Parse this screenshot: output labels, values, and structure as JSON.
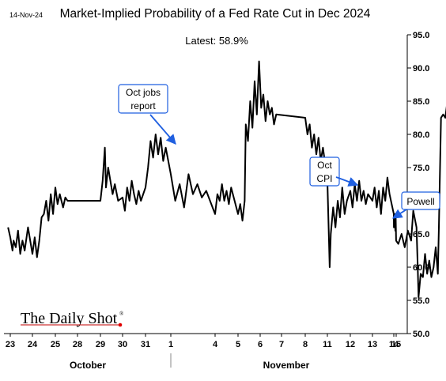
{
  "date_stamp": "14-Nov-24",
  "branding": "The Daily Shot",
  "branding_mark": "®",
  "chart_data": {
    "type": "line",
    "title": "Market-Implied Probability of a Fed Rate Cut in Dec 2024",
    "subtitle": "Latest:  58.9%",
    "latest_value": 58.9,
    "ylim": [
      50,
      95
    ],
    "yticks": [
      50,
      55,
      60,
      65,
      70,
      75,
      80,
      85,
      90,
      95
    ],
    "ytick_labels": [
      "50.0",
      "55.0",
      "60.0",
      "65.0",
      "70.0",
      "75.0",
      "80.0",
      "85.0",
      "90.0",
      "95.0"
    ],
    "x_dates": [
      "Oct 23",
      "Oct 24",
      "Oct 25",
      "Oct 28",
      "Oct 29",
      "Oct 30",
      "Oct 31",
      "Nov 1",
      "Nov 4",
      "Nov 5",
      "Nov 6",
      "Nov 7",
      "Nov 8",
      "Nov 11",
      "Nov 12",
      "Nov 13",
      "Nov 14",
      "Nov 15"
    ],
    "xtick_labels": [
      "23",
      "24",
      "25",
      "28",
      "29",
      "30",
      "31",
      "1",
      "4",
      "5",
      "6",
      "7",
      "8",
      "11",
      "12",
      "13",
      "14",
      "15"
    ],
    "month_labels": [
      "October",
      "November"
    ],
    "grid": false,
    "line_color": "#000000",
    "latest_marker_color": "#e00000",
    "annotation_color": "#1f5fe0",
    "annotations": [
      {
        "text": "Oct jobs report",
        "lines": [
          "Oct jobs",
          "report"
        ]
      },
      {
        "text": "Oct CPI",
        "lines": [
          "Oct",
          "CPI"
        ]
      },
      {
        "text": "Powell",
        "lines": [
          "Powell"
        ]
      }
    ],
    "series": [
      {
        "values": [
          [
            22.9,
            66.0
          ],
          [
            23.0,
            64.5
          ],
          [
            23.1,
            62.5
          ],
          [
            23.15,
            64.0
          ],
          [
            23.25,
            63.0
          ],
          [
            23.35,
            65.5
          ],
          [
            23.45,
            62.0
          ],
          [
            23.55,
            64.0
          ],
          [
            23.65,
            62.5
          ],
          [
            23.8,
            66.0
          ],
          [
            24.0,
            62.0
          ],
          [
            24.1,
            64.5
          ],
          [
            24.2,
            61.5
          ],
          [
            24.3,
            64.0
          ],
          [
            24.4,
            67.5
          ],
          [
            24.5,
            68.0
          ],
          [
            24.6,
            70.0
          ],
          [
            24.7,
            67.0
          ],
          [
            24.8,
            71.0
          ],
          [
            24.9,
            68.0
          ],
          [
            25.0,
            72.0
          ],
          [
            25.1,
            69.5
          ],
          [
            25.2,
            71.0
          ],
          [
            25.35,
            69.0
          ],
          [
            25.45,
            70.5
          ],
          [
            25.55,
            70.0
          ],
          [
            27.0,
            70.0
          ],
          [
            27.1,
            73.0
          ],
          [
            27.2,
            78.0
          ],
          [
            27.25,
            72.0
          ],
          [
            27.35,
            75.0
          ],
          [
            27.45,
            73.0
          ],
          [
            27.55,
            71.0
          ],
          [
            27.65,
            72.5
          ],
          [
            27.8,
            70.0
          ],
          [
            28.0,
            70.5
          ],
          [
            28.1,
            68.5
          ],
          [
            28.2,
            72.0
          ],
          [
            28.3,
            70.0
          ],
          [
            28.4,
            73.0
          ],
          [
            28.5,
            71.0
          ],
          [
            28.6,
            69.5
          ],
          [
            28.7,
            71.5
          ],
          [
            28.8,
            70.0
          ],
          [
            29.0,
            72.0
          ],
          [
            29.1,
            75.0
          ],
          [
            29.2,
            79.0
          ],
          [
            29.3,
            76.5
          ],
          [
            29.4,
            80.0
          ],
          [
            29.5,
            77.0
          ],
          [
            29.6,
            79.5
          ],
          [
            29.7,
            76.0
          ],
          [
            29.8,
            78.0
          ],
          [
            30.0,
            74.0
          ],
          [
            30.1,
            70.0
          ],
          [
            30.2,
            72.5
          ],
          [
            30.3,
            69.0
          ],
          [
            30.4,
            74.0
          ],
          [
            30.5,
            71.0
          ],
          [
            30.6,
            72.5
          ],
          [
            30.7,
            70.5
          ],
          [
            30.8,
            71.5
          ],
          [
            31.0,
            68.0
          ],
          [
            31.1,
            71.0
          ],
          [
            31.2,
            70.0
          ],
          [
            31.3,
            72.5
          ],
          [
            31.4,
            70.0
          ],
          [
            31.5,
            71.5
          ],
          [
            31.6,
            69.5
          ],
          [
            31.7,
            72.0
          ],
          [
            32.0,
            68.0
          ],
          [
            32.1,
            69.5
          ],
          [
            32.2,
            67.0
          ],
          [
            32.3,
            70.0
          ],
          [
            32.35,
            81.5
          ],
          [
            32.45,
            79.0
          ],
          [
            32.55,
            85.0
          ],
          [
            32.65,
            81.0
          ],
          [
            32.75,
            88.0
          ],
          [
            32.85,
            83.0
          ],
          [
            32.95,
            91.0
          ],
          [
            33.05,
            84.0
          ],
          [
            33.15,
            86.0
          ],
          [
            33.25,
            82.0
          ],
          [
            33.35,
            85.0
          ],
          [
            33.45,
            83.0
          ],
          [
            33.55,
            84.0
          ],
          [
            33.65,
            81.5
          ],
          [
            33.75,
            83.0
          ],
          [
            35.0,
            82.5
          ],
          [
            35.1,
            80.0
          ],
          [
            35.2,
            81.5
          ],
          [
            35.3,
            78.0
          ],
          [
            35.4,
            80.0
          ],
          [
            35.5,
            77.0
          ],
          [
            35.6,
            79.5
          ],
          [
            35.7,
            76.0
          ],
          [
            35.8,
            78.0
          ],
          [
            36.0,
            73.0
          ],
          [
            36.1,
            60.0
          ],
          [
            36.15,
            65.0
          ],
          [
            36.25,
            69.0
          ],
          [
            36.35,
            66.0
          ],
          [
            36.45,
            70.0
          ],
          [
            36.55,
            67.5
          ],
          [
            36.65,
            72.0
          ],
          [
            36.75,
            68.0
          ],
          [
            36.85,
            70.0
          ],
          [
            37.0,
            71.5
          ],
          [
            37.1,
            69.0
          ],
          [
            37.2,
            72.5
          ],
          [
            37.3,
            70.0
          ],
          [
            37.4,
            73.0
          ],
          [
            37.5,
            70.0
          ],
          [
            37.6,
            71.5
          ],
          [
            37.7,
            69.5
          ],
          [
            37.8,
            71.0
          ],
          [
            38.0,
            70.0
          ],
          [
            38.1,
            72.0
          ],
          [
            38.2,
            69.0
          ],
          [
            38.3,
            71.5
          ],
          [
            38.4,
            68.0
          ],
          [
            38.5,
            72.0
          ],
          [
            38.6,
            70.0
          ],
          [
            38.7,
            73.5
          ],
          [
            38.8,
            71.0
          ],
          [
            39.0,
            68.0
          ],
          [
            39.05,
            66.0
          ],
          [
            39.2,
            67.5
          ],
          [
            39.35,
            66.0
          ],
          [
            39.5,
            68.0
          ],
          [
            39.65,
            65.5
          ],
          [
            39.8,
            67.5
          ],
          [
            39.95,
            64.0
          ],
          [
            40.1,
            63.5
          ],
          [
            40.25,
            65.0
          ],
          [
            40.4,
            63.0
          ],
          [
            40.55,
            65.5
          ],
          [
            40.7,
            64.0
          ],
          [
            40.8,
            68.5
          ],
          [
            40.95,
            66.0
          ],
          [
            41.0,
            61.0
          ],
          [
            41.05,
            55.5
          ],
          [
            41.15,
            59.0
          ],
          [
            41.25,
            58.5
          ],
          [
            41.35,
            62.0
          ],
          [
            41.45,
            59.0
          ],
          [
            41.55,
            61.0
          ],
          [
            41.65,
            58.5
          ],
          [
            41.75,
            60.0
          ],
          [
            41.85,
            63.0
          ],
          [
            41.95,
            59.0
          ],
          [
            42.0,
            66.0
          ],
          [
            42.1,
            82.5
          ],
          [
            42.2,
            83.0
          ],
          [
            42.3,
            82.5
          ],
          [
            42.4,
            85.0
          ],
          [
            42.5,
            83.0
          ],
          [
            42.6,
            82.0
          ],
          [
            42.7,
            81.0
          ],
          [
            42.8,
            85.5
          ],
          [
            42.9,
            78.0
          ],
          [
            42.95,
            76.0
          ],
          [
            43.0,
            73.0
          ],
          [
            43.05,
            55.5
          ],
          [
            43.1,
            60.0
          ],
          [
            43.15,
            61.5
          ],
          [
            43.2,
            59.0
          ],
          [
            43.25,
            60.5
          ],
          [
            43.3,
            58.9
          ]
        ]
      }
    ]
  }
}
